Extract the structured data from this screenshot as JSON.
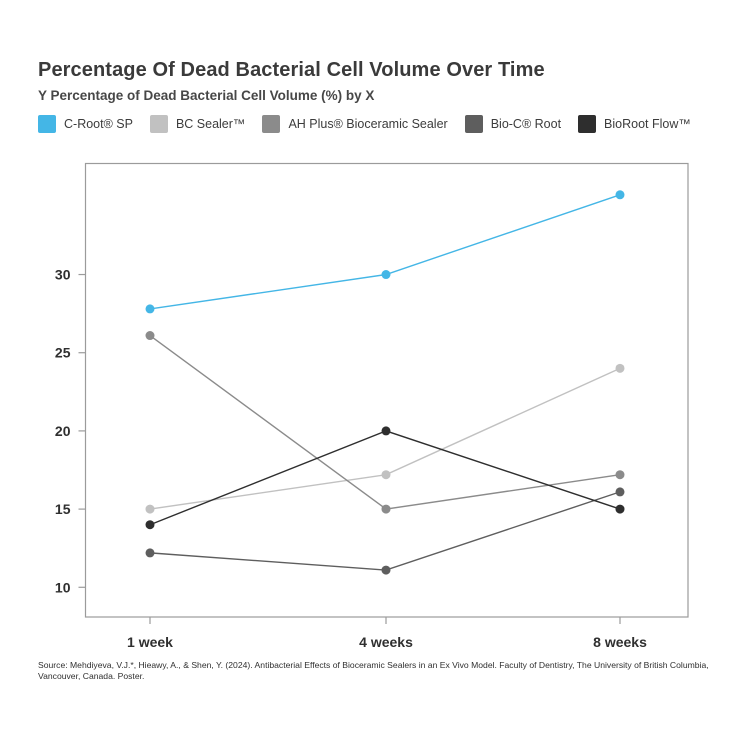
{
  "header": {
    "title": "Percentage Of Dead Bacterial Cell Volume Over Time",
    "subtitle": "Y Percentage of Dead Bacterial Cell Volume (%) by X"
  },
  "legend": {
    "position": "top",
    "items": [
      {
        "label": "C-Root® SP",
        "color": "#44B6E6"
      },
      {
        "label": "BC Sealer™",
        "color": "#C1C1C1"
      },
      {
        "label": "AH Plus® Bioceramic Sealer",
        "color": "#8B8B8B"
      },
      {
        "label": "Bio-C® Root",
        "color": "#5E5E5E"
      },
      {
        "label": "BioRoot Flow™",
        "color": "#2E2E2E"
      }
    ]
  },
  "chart_data": {
    "type": "line",
    "title": "Percentage Of Dead Bacterial Cell Volume Over Time",
    "xlabel": "",
    "ylabel": "Percentage of Dead Bacterial Cell Volume (%)",
    "categories": [
      "1 week",
      "4 weeks",
      "8 weeks"
    ],
    "series": [
      {
        "name": "C-Root® SP",
        "color": "#44B6E6",
        "values": [
          27.8,
          30,
          35.1
        ]
      },
      {
        "name": "BC Sealer™",
        "color": "#C1C1C1",
        "values": [
          15,
          17.2,
          24
        ]
      },
      {
        "name": "AH Plus® Bioceramic Sealer",
        "color": "#8B8B8B",
        "values": [
          26.1,
          15,
          17.2
        ]
      },
      {
        "name": "Bio-C® Root",
        "color": "#5E5E5E",
        "values": [
          12.2,
          11.1,
          16.1
        ]
      },
      {
        "name": "BioRoot Flow™",
        "color": "#2E2E2E",
        "values": [
          14,
          20,
          15
        ]
      }
    ],
    "yticks": [
      10,
      15,
      20,
      25,
      30
    ],
    "ylim": [
      8.1,
      37.1
    ],
    "grid": false,
    "legend_position": "top",
    "border_color": "#9B9B9B",
    "tick_color": "#9B9B9B"
  },
  "source": {
    "text": "Source: Mehdiyeva, V.J.*, Hieawy, A., & Shen, Y. (2024). Antibacterial Effects of Bioceramic Sealers in an Ex Vivo Model. Faculty of Dentistry, The University of British Columbia, Vancouver, Canada. Poster."
  }
}
